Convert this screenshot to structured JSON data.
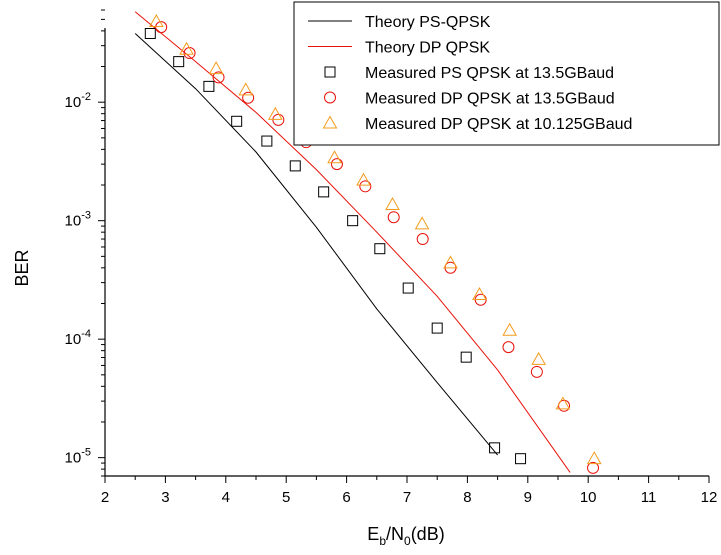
{
  "chart_data": {
    "type": "scatter",
    "title": "",
    "xlabel": {
      "main": "E",
      "sub1": "b",
      "mid": "/N",
      "sub2": "0",
      "tail": "(dB)"
    },
    "ylabel": "BER",
    "xlim": [
      2,
      12
    ],
    "ylim": [
      7e-06,
      0.06
    ],
    "y_scale": "log",
    "x_ticks": [
      "2",
      "3",
      "4",
      "5",
      "6",
      "7",
      "8",
      "9",
      "10",
      "11",
      "12"
    ],
    "y_ticks": [
      {
        "base": "10",
        "exp": "-5",
        "value": 1e-05
      },
      {
        "base": "10",
        "exp": "-4",
        "value": 0.0001
      },
      {
        "base": "10",
        "exp": "-3",
        "value": 0.001
      },
      {
        "base": "10",
        "exp": "-2",
        "value": 0.01
      }
    ],
    "grid": false,
    "legend_position": "top-right",
    "series": [
      {
        "name": "Theory PS-QPSK",
        "kind": "line",
        "color": "#000000",
        "x": [
          2.5,
          3.5,
          4.5,
          5.5,
          6.5,
          7.5,
          8.5
        ],
        "y": [
          0.038,
          0.013,
          0.0038,
          0.00088,
          0.00018,
          4.3e-05,
          1.05e-05
        ]
      },
      {
        "name": "Theory DP QPSK",
        "kind": "line",
        "color": "#e8120a",
        "x": [
          2.5,
          3.5,
          4.5,
          5.5,
          6.5,
          7.5,
          8.5,
          9.7
        ],
        "y": [
          0.058,
          0.022,
          0.0082,
          0.0027,
          0.0008,
          0.00023,
          5.5e-05,
          7.5e-06
        ]
      },
      {
        "name": "Measured PS QPSK at 13.5GBaud",
        "kind": "marker",
        "marker": "square",
        "color": "#000000",
        "x": [
          2.75,
          3.22,
          3.72,
          4.18,
          4.68,
          5.15,
          5.62,
          6.1,
          6.55,
          7.02,
          7.5,
          7.98,
          8.45,
          8.88
        ],
        "y": [
          0.038,
          0.022,
          0.0136,
          0.0069,
          0.0047,
          0.0029,
          0.00175,
          0.001,
          0.00058,
          0.00027,
          0.000124,
          7.05e-05,
          1.21e-05,
          9.8e-06
        ]
      },
      {
        "name": "Measured DP QPSK at 13.5GBaud",
        "kind": "marker",
        "marker": "circle",
        "color": "#e8120a",
        "x": [
          2.93,
          3.4,
          3.88,
          4.37,
          4.87,
          5.33,
          5.84,
          6.31,
          6.78,
          7.26,
          7.72,
          8.22,
          8.68,
          9.15,
          9.6,
          10.08
        ],
        "y": [
          0.043,
          0.026,
          0.0162,
          0.0109,
          0.0071,
          0.0046,
          0.003,
          0.00195,
          0.00107,
          0.0007,
          0.000401,
          0.000215,
          8.57e-05,
          5.3e-05,
          2.74e-05,
          8.2e-06
        ]
      },
      {
        "name": "Measured DP QPSK at 10.125GBaud",
        "kind": "marker",
        "marker": "triangle",
        "color": "#f39c1c",
        "x": [
          2.85,
          3.35,
          3.84,
          4.33,
          4.82,
          5.3,
          5.8,
          6.28,
          6.76,
          7.25,
          7.72,
          8.2,
          8.7,
          9.18,
          9.58,
          10.1
        ],
        "y": [
          0.048,
          0.028,
          0.0192,
          0.0127,
          0.0079,
          0.0049,
          0.0034,
          0.0022,
          0.00137,
          0.00094,
          0.00044,
          0.000238,
          0.000119,
          6.75e-05,
          2.84e-05,
          9.8e-06
        ]
      }
    ]
  }
}
